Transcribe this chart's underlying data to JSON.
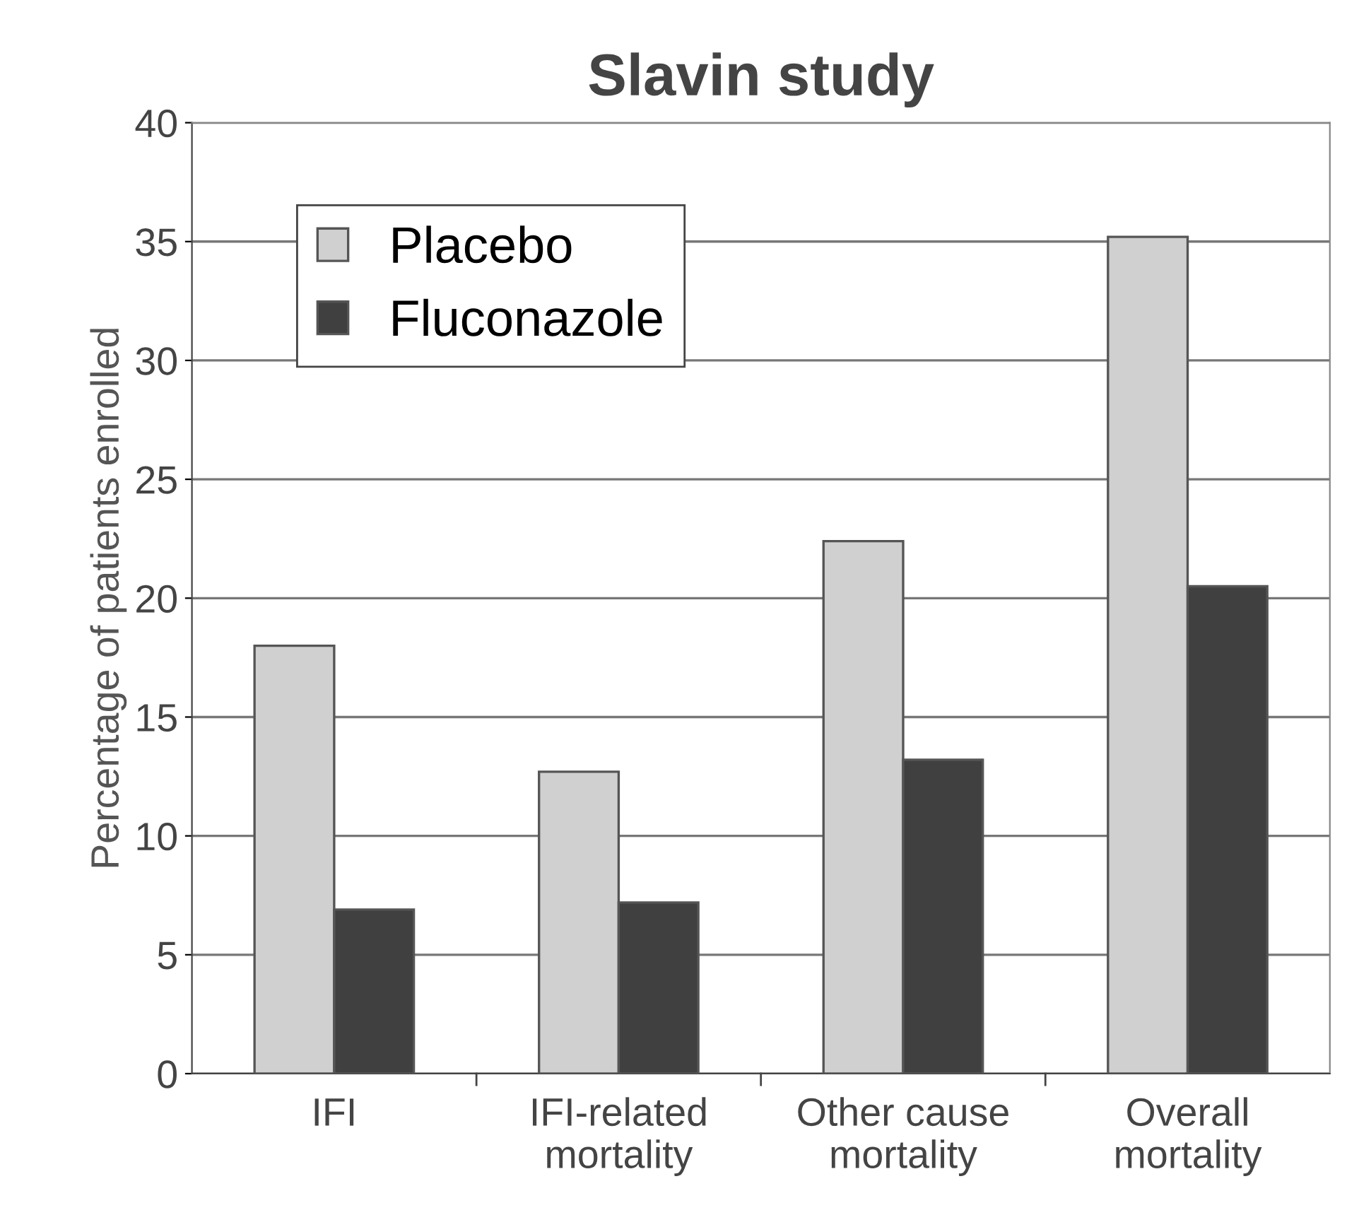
{
  "chart_data": {
    "type": "bar",
    "title": "Slavin study",
    "ylabel": "Percentage of patients enrolled",
    "categories": [
      "IFI",
      "IFI-related\nmortality",
      "Other cause\nmortality",
      "Overall\nmortality"
    ],
    "series": [
      {
        "name": "Placebo",
        "color": "#d0d0d0",
        "values": [
          18,
          12.7,
          22.4,
          35.2
        ]
      },
      {
        "name": "Fluconazole",
        "color": "#404040",
        "values": [
          6.9,
          7.2,
          13.2,
          20.5
        ]
      }
    ],
    "ylim": [
      0,
      40
    ],
    "yticks": [
      0,
      5,
      10,
      15,
      20,
      25,
      30,
      35,
      40
    ],
    "grid": "y",
    "legend": "top left"
  }
}
